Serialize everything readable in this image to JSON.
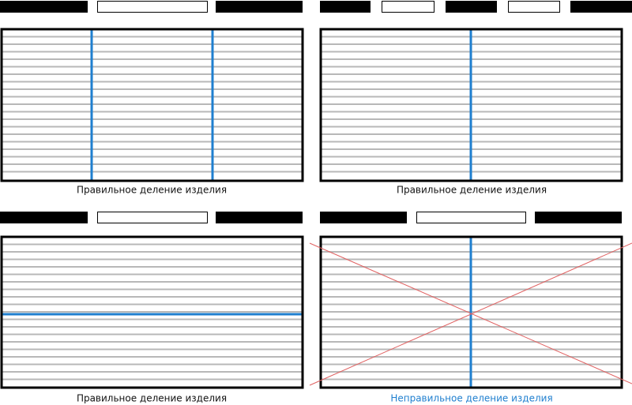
{
  "panels": [
    {
      "caption": "Правильное деление изделия"
    },
    {
      "caption": "Правильное деление изделия"
    },
    {
      "caption": "Правильное деление изделия"
    },
    {
      "caption": "Неправильное деление изделия"
    }
  ]
}
